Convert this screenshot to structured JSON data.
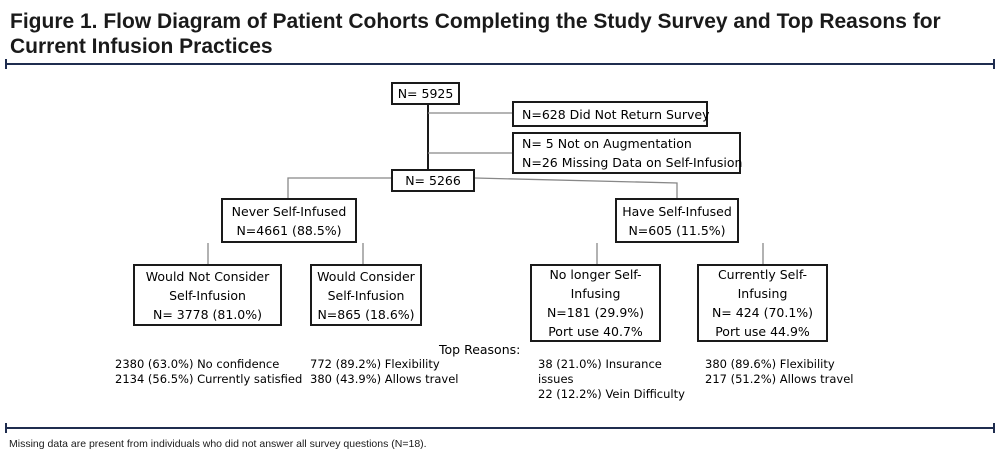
{
  "title": "Figure 1. Flow Diagram of Patient Cohorts Completing the Study Survey and Top Reasons for Current Infusion Practices",
  "boxes": {
    "total": [
      "N= 5925"
    ],
    "excluded_return": [
      "N=628 Did Not Return Survey"
    ],
    "excluded_other": [
      "N= 5 Not on Augmentation",
      "N=26 Missing Data on Self-Infusion"
    ],
    "analyzed": [
      "N= 5266"
    ],
    "never": [
      "Never Self-Infused",
      "N=4661 (88.5%)"
    ],
    "have": [
      "Have Self-Infused",
      "N=605 (11.5%)"
    ],
    "would_not": [
      "Would Not Consider",
      "Self-Infusion",
      "N= 3778 (81.0%)"
    ],
    "would": [
      "Would Consider",
      "Self-Infusion",
      "N=865 (18.6%)"
    ],
    "no_longer": [
      "No longer Self-",
      "Infusing",
      "N=181 (29.9%)",
      "Port use 40.7%"
    ],
    "currently": [
      "Currently Self-",
      "Infusing",
      "N= 424 (70.1%)",
      "Port use 44.9%"
    ]
  },
  "top_reasons_label": "Top Reasons:",
  "reasons": {
    "would_not": [
      "2380 (63.0%) No confidence",
      "2134 (56.5%) Currently satisfied"
    ],
    "would": [
      "772 (89.2%) Flexibility",
      "380 (43.9%) Allows travel"
    ],
    "no_longer": [
      "38 (21.0%) Insurance",
      "issues",
      "22 (12.2%) Vein Difficulty"
    ],
    "currently": [
      "380 (89.6%) Flexibility",
      "217 (51.2%) Allows travel"
    ]
  },
  "footnote": "Missing data are present from individuals who did not answer all survey questions (N=18).",
  "colors": {
    "rule": "#1f2d4f",
    "box_border": "#1a1a1a",
    "connector": "#888888"
  }
}
